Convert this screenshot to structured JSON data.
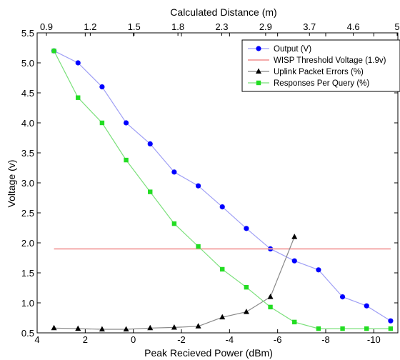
{
  "chart_data": {
    "type": "line",
    "top_axis_label": "Calculated Distance (m)",
    "top_ticks": [
      "0.9",
      "1.2",
      "1.5",
      "1.8",
      "2.3",
      "2.9",
      "3.7",
      "4.6",
      "5"
    ],
    "xlabel": "Peak Recieved Power (dBm)",
    "ylabel": "Voltage (v)",
    "xlim": [
      4,
      -11
    ],
    "ylim": [
      0.5,
      5.5
    ],
    "x_ticks": [
      4,
      2,
      0,
      -2,
      -4,
      -6,
      -8,
      -10
    ],
    "x_tick_labels": [
      "4",
      "2",
      "0",
      "-2",
      "-4",
      "-6",
      "-8",
      "-10"
    ],
    "y_ticks": [
      0.5,
      1.0,
      1.5,
      2.0,
      2.5,
      3.0,
      3.5,
      4.0,
      4.5,
      5.0,
      5.5
    ],
    "y_tick_labels": [
      "0.5",
      "1.0",
      "1.5",
      "2.0",
      "2.5",
      "3.0",
      "3.5",
      "4.0",
      "4.5",
      "5.0",
      "5.5"
    ],
    "grid": false,
    "legend_position": "top-right",
    "series": [
      {
        "name": "Output (V)",
        "color": "#0000ff",
        "line_color": "#9f9ff5",
        "marker": "circle",
        "x": [
          3.3,
          2.3,
          1.3,
          0.3,
          -0.7,
          -1.7,
          -2.7,
          -3.7,
          -4.7,
          -5.7,
          -6.7,
          -7.7,
          -8.7,
          -9.7,
          -10.7
        ],
        "y": [
          5.2,
          5.0,
          4.6,
          4.0,
          3.65,
          3.18,
          2.95,
          2.6,
          2.24,
          1.9,
          1.7,
          1.55,
          1.1,
          0.95,
          0.7
        ]
      },
      {
        "name": "WISP Threshold Voltage (1.9v)",
        "color": "#f4aaaa",
        "line_color": "#f4aaaa",
        "marker": "none",
        "x": [
          3.3,
          -10.7
        ],
        "y": [
          1.9,
          1.9
        ]
      },
      {
        "name": "Uplink Packet Errors (%)",
        "color": "#000000",
        "line_color": "#888888",
        "marker": "triangle",
        "x": [
          3.3,
          2.3,
          1.3,
          0.3,
          -0.7,
          -1.7,
          -2.7,
          -3.7,
          -4.7,
          -5.7,
          -6.7
        ],
        "y": [
          0.58,
          0.57,
          0.56,
          0.56,
          0.58,
          0.59,
          0.61,
          0.76,
          0.85,
          1.1,
          2.1
        ]
      },
      {
        "name": "Responses Per Query (%)",
        "color": "#22dd22",
        "line_color": "#7be07b",
        "marker": "square",
        "x": [
          3.3,
          2.3,
          1.3,
          0.3,
          -0.7,
          -1.7,
          -2.7,
          -3.7,
          -4.7,
          -5.7,
          -6.7,
          -7.7,
          -8.7,
          -9.7,
          -10.7
        ],
        "y": [
          5.2,
          4.42,
          4.0,
          3.38,
          2.85,
          2.32,
          1.94,
          1.56,
          1.26,
          0.93,
          0.68,
          0.57,
          0.57,
          0.57,
          0.57
        ]
      }
    ]
  }
}
